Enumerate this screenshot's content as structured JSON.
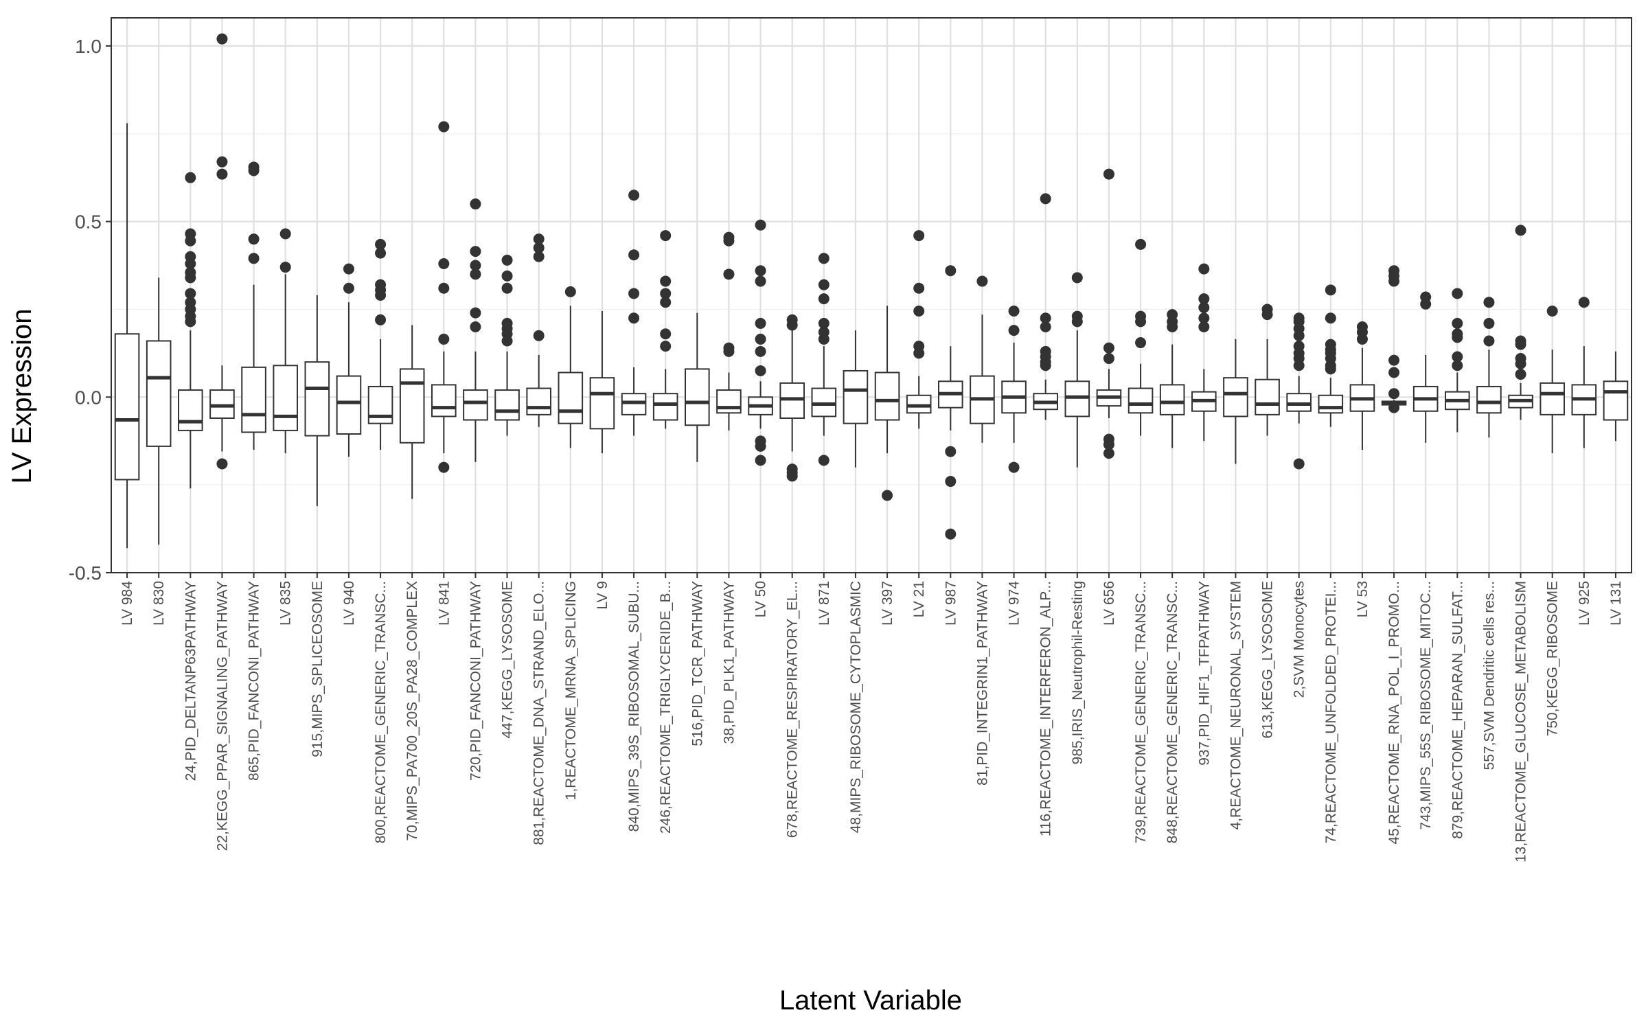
{
  "chart_data": {
    "type": "box",
    "xlabel": "Latent Variable",
    "ylabel": "LV Expression",
    "ylim": [
      -0.5,
      1.08
    ],
    "yticks": [
      -0.5,
      0.0,
      0.5,
      1.0
    ],
    "ytick_labels": [
      "-0.5",
      "0.0",
      "0.5",
      "1.0"
    ],
    "grid": true,
    "theme": "bw",
    "colors": {
      "box_fill": "#ffffff",
      "box_stroke": "#333333",
      "grid_major": "#e0e0e0",
      "grid_minor": "#f0f0f0",
      "panel_border": "#333333"
    },
    "categories": [
      "LV 984",
      "LV 830",
      "24,PID_DELTANP63PATHWAY",
      "22,KEGG_PPAR_SIGNALING_PATHWAY",
      "865,PID_FANCONI_PATHWAY",
      "LV 835",
      "915,MIPS_SPLICEOSOME",
      "LV 940",
      "800,REACTOME_GENERIC_TRANSC...",
      "70,MIPS_PA700_20S_PA28_COMPLEX",
      "LV 841",
      "720,PID_FANCONI_PATHWAY",
      "447,KEGG_LYSOSOME",
      "881,REACTOME_DNA_STRAND_ELO...",
      "1,REACTOME_MRNA_SPLICING",
      "LV 9",
      "840,MIPS_39S_RIBOSOMAL_SUBU...",
      "246,REACTOME_TRIGLYCERIDE_B...",
      "516,PID_TCR_PATHWAY",
      "38,PID_PLK1_PATHWAY",
      "LV 50",
      "678,REACTOME_RESPIRATORY_EL...",
      "LV 871",
      "48,MIPS_RIBOSOME_CYTOPLASMIC",
      "LV 397",
      "LV 21",
      "LV 987",
      "81,PID_INTEGRIN1_PATHWAY",
      "LV 974",
      "116,REACTOME_INTERFERON_ALP...",
      "985,IRIS_Neutrophil-Resting",
      "LV 656",
      "739,REACTOME_GENERIC_TRANSC...",
      "848,REACTOME_GENERIC_TRANSC...",
      "937,PID_HIF1_TFPATHWAY",
      "4,REACTOME_NEURONAL_SYSTEM",
      "613,KEGG_LYSOSOME",
      "2,SVM Monocytes",
      "74,REACTOME_UNFOLDED_PROTEI...",
      "LV 53",
      "45,REACTOME_RNA_POL_I_PROMO...",
      "743,MIPS_55S_RIBOSOME_MITOC...",
      "879,REACTOME_HEPARAN_SULFAT...",
      "557,SVM Dendritic cells res...",
      "13,REACTOME_GLUCOSE_METABOLISM",
      "750,KEGG_RIBOSOME",
      "LV 925",
      "LV 131"
    ],
    "boxes": [
      {
        "whisker_low": -0.43,
        "q1": -0.235,
        "median": -0.065,
        "q3": 0.18,
        "whisker_high": 0.78,
        "outliers": []
      },
      {
        "whisker_low": -0.42,
        "q1": -0.14,
        "median": 0.055,
        "q3": 0.16,
        "whisker_high": 0.34,
        "outliers": []
      },
      {
        "whisker_low": -0.26,
        "q1": -0.095,
        "median": -0.07,
        "q3": 0.02,
        "whisker_high": 0.19,
        "outliers": [
          0.625,
          0.465,
          0.445,
          0.4,
          0.38,
          0.355,
          0.34,
          0.295,
          0.27,
          0.25,
          0.23,
          0.215
        ]
      },
      {
        "whisker_low": -0.155,
        "q1": -0.06,
        "median": -0.025,
        "q3": 0.02,
        "whisker_high": 0.09,
        "outliers": [
          1.02,
          0.67,
          0.635,
          -0.19
        ]
      },
      {
        "whisker_low": -0.15,
        "q1": -0.1,
        "median": -0.05,
        "q3": 0.085,
        "whisker_high": 0.32,
        "outliers": [
          0.655,
          0.645,
          0.45,
          0.395
        ]
      },
      {
        "whisker_low": -0.16,
        "q1": -0.095,
        "median": -0.055,
        "q3": 0.09,
        "whisker_high": 0.35,
        "outliers": [
          0.465,
          0.37
        ]
      },
      {
        "whisker_low": -0.31,
        "q1": -0.11,
        "median": 0.025,
        "q3": 0.1,
        "whisker_high": 0.29,
        "outliers": []
      },
      {
        "whisker_low": -0.17,
        "q1": -0.105,
        "median": -0.015,
        "q3": 0.06,
        "whisker_high": 0.27,
        "outliers": [
          0.365,
          0.31
        ]
      },
      {
        "whisker_low": -0.15,
        "q1": -0.075,
        "median": -0.055,
        "q3": 0.03,
        "whisker_high": 0.165,
        "outliers": [
          0.435,
          0.41,
          0.32,
          0.305,
          0.29,
          0.22
        ]
      },
      {
        "whisker_low": -0.29,
        "q1": -0.13,
        "median": 0.04,
        "q3": 0.08,
        "whisker_high": 0.205,
        "outliers": []
      },
      {
        "whisker_low": -0.16,
        "q1": -0.055,
        "median": -0.03,
        "q3": 0.035,
        "whisker_high": 0.13,
        "outliers": [
          0.77,
          0.38,
          0.31,
          0.165,
          -0.2
        ]
      },
      {
        "whisker_low": -0.185,
        "q1": -0.065,
        "median": -0.015,
        "q3": 0.02,
        "whisker_high": 0.13,
        "outliers": [
          0.55,
          0.415,
          0.375,
          0.35,
          0.24,
          0.2
        ]
      },
      {
        "whisker_low": -0.11,
        "q1": -0.065,
        "median": -0.04,
        "q3": 0.02,
        "whisker_high": 0.13,
        "outliers": [
          0.39,
          0.345,
          0.31,
          0.21,
          0.195,
          0.18,
          0.16
        ]
      },
      {
        "whisker_low": -0.085,
        "q1": -0.05,
        "median": -0.03,
        "q3": 0.025,
        "whisker_high": 0.12,
        "outliers": [
          0.45,
          0.425,
          0.4,
          0.175
        ]
      },
      {
        "whisker_low": -0.145,
        "q1": -0.075,
        "median": -0.04,
        "q3": 0.07,
        "whisker_high": 0.26,
        "outliers": [
          0.3
        ]
      },
      {
        "whisker_low": -0.16,
        "q1": -0.09,
        "median": 0.01,
        "q3": 0.055,
        "whisker_high": 0.245,
        "outliers": []
      },
      {
        "whisker_low": -0.11,
        "q1": -0.05,
        "median": -0.015,
        "q3": 0.01,
        "whisker_high": 0.085,
        "outliers": [
          0.575,
          0.405,
          0.295,
          0.225
        ]
      },
      {
        "whisker_low": -0.09,
        "q1": -0.065,
        "median": -0.02,
        "q3": 0.01,
        "whisker_high": 0.08,
        "outliers": [
          0.46,
          0.33,
          0.295,
          0.27,
          0.18,
          0.145
        ]
      },
      {
        "whisker_low": -0.185,
        "q1": -0.08,
        "median": -0.015,
        "q3": 0.08,
        "whisker_high": 0.24,
        "outliers": []
      },
      {
        "whisker_low": -0.095,
        "q1": -0.045,
        "median": -0.03,
        "q3": 0.02,
        "whisker_high": 0.07,
        "outliers": [
          0.455,
          0.445,
          0.35,
          0.14,
          0.13
        ]
      },
      {
        "whisker_low": -0.09,
        "q1": -0.05,
        "median": -0.025,
        "q3": 0,
        "whisker_high": 0.045,
        "outliers": [
          0.49,
          0.36,
          0.33,
          0.21,
          0.165,
          0.13,
          0.075,
          -0.125,
          -0.14,
          -0.18
        ]
      },
      {
        "whisker_low": -0.155,
        "q1": -0.06,
        "median": -0.005,
        "q3": 0.04,
        "whisker_high": 0.195,
        "outliers": [
          0.22,
          0.205,
          -0.205,
          -0.215,
          -0.225
        ]
      },
      {
        "whisker_low": -0.11,
        "q1": -0.055,
        "median": -0.02,
        "q3": 0.025,
        "whisker_high": 0.145,
        "outliers": [
          0.395,
          0.32,
          0.28,
          0.21,
          0.185,
          0.165,
          -0.18
        ]
      },
      {
        "whisker_low": -0.2,
        "q1": -0.075,
        "median": 0.02,
        "q3": 0.075,
        "whisker_high": 0.19,
        "outliers": []
      },
      {
        "whisker_low": -0.16,
        "q1": -0.065,
        "median": -0.01,
        "q3": 0.07,
        "whisker_high": 0.26,
        "outliers": [
          -0.28
        ]
      },
      {
        "whisker_low": -0.09,
        "q1": -0.045,
        "median": -0.025,
        "q3": 0.005,
        "whisker_high": 0.06,
        "outliers": [
          0.46,
          0.31,
          0.245,
          0.145,
          0.125
        ]
      },
      {
        "whisker_low": -0.095,
        "q1": -0.03,
        "median": 0.01,
        "q3": 0.045,
        "whisker_high": 0.145,
        "outliers": [
          0.36,
          -0.155,
          -0.24,
          -0.39
        ]
      },
      {
        "whisker_low": -0.13,
        "q1": -0.075,
        "median": -0.005,
        "q3": 0.06,
        "whisker_high": 0.235,
        "outliers": [
          0.33
        ]
      },
      {
        "whisker_low": -0.13,
        "q1": -0.045,
        "median": 0,
        "q3": 0.045,
        "whisker_high": 0.155,
        "outliers": [
          0.245,
          0.19,
          -0.2
        ]
      },
      {
        "whisker_low": -0.065,
        "q1": -0.035,
        "median": -0.015,
        "q3": 0.01,
        "whisker_high": 0.05,
        "outliers": [
          0.565,
          0.225,
          0.2,
          0.13,
          0.115,
          0.1,
          0.09
        ]
      },
      {
        "whisker_low": -0.2,
        "q1": -0.055,
        "median": 0,
        "q3": 0.045,
        "whisker_high": 0.19,
        "outliers": [
          0.34,
          0.23,
          0.215
        ]
      },
      {
        "whisker_low": -0.06,
        "q1": -0.025,
        "median": 0,
        "q3": 0.02,
        "whisker_high": 0.08,
        "outliers": [
          0.635,
          0.14,
          0.11,
          -0.12,
          -0.135,
          -0.16
        ]
      },
      {
        "whisker_low": -0.11,
        "q1": -0.045,
        "median": -0.02,
        "q3": 0.025,
        "whisker_high": 0.095,
        "outliers": [
          0.435,
          0.23,
          0.215,
          0.155
        ]
      },
      {
        "whisker_low": -0.145,
        "q1": -0.05,
        "median": -0.015,
        "q3": 0.035,
        "whisker_high": 0.15,
        "outliers": [
          0.235,
          0.215,
          0.2
        ]
      },
      {
        "whisker_low": -0.125,
        "q1": -0.04,
        "median": -0.01,
        "q3": 0.015,
        "whisker_high": 0.08,
        "outliers": [
          0.365,
          0.28,
          0.255,
          0.225,
          0.2
        ]
      },
      {
        "whisker_low": -0.19,
        "q1": -0.055,
        "median": 0.01,
        "q3": 0.055,
        "whisker_high": 0.165,
        "outliers": []
      },
      {
        "whisker_low": -0.11,
        "q1": -0.05,
        "median": -0.02,
        "q3": 0.05,
        "whisker_high": 0.165,
        "outliers": [
          0.25,
          0.235
        ]
      },
      {
        "whisker_low": -0.075,
        "q1": -0.04,
        "median": -0.02,
        "q3": 0.01,
        "whisker_high": 0.06,
        "outliers": [
          0.225,
          0.215,
          0.195,
          0.175,
          0.145,
          0.125,
          0.11,
          0.09,
          -0.19
        ]
      },
      {
        "whisker_low": -0.085,
        "q1": -0.045,
        "median": -0.03,
        "q3": 0.005,
        "whisker_high": 0.055,
        "outliers": [
          0.305,
          0.225,
          0.15,
          0.135,
          0.125,
          0.11,
          0.09,
          0.08
        ]
      },
      {
        "whisker_low": -0.15,
        "q1": -0.04,
        "median": -0.005,
        "q3": 0.035,
        "whisker_high": 0.14,
        "outliers": [
          0.2,
          0.185,
          0.165
        ]
      },
      {
        "whisker_low": -0.025,
        "q1": -0.022,
        "median": -0.018,
        "q3": -0.012,
        "whisker_high": -0.008,
        "outliers": [
          0.36,
          0.345,
          0.33,
          0.105,
          0.07,
          0.01,
          -0.03
        ]
      },
      {
        "whisker_low": -0.13,
        "q1": -0.04,
        "median": -0.005,
        "q3": 0.03,
        "whisker_high": 0.12,
        "outliers": [
          0.285,
          0.265
        ]
      },
      {
        "whisker_low": -0.1,
        "q1": -0.035,
        "median": -0.01,
        "q3": 0.015,
        "whisker_high": 0.07,
        "outliers": [
          0.295,
          0.21,
          0.18,
          0.17,
          0.115,
          0.09
        ]
      },
      {
        "whisker_low": -0.115,
        "q1": -0.045,
        "median": -0.015,
        "q3": 0.03,
        "whisker_high": 0.135,
        "outliers": [
          0.27,
          0.21,
          0.16
        ]
      },
      {
        "whisker_low": -0.065,
        "q1": -0.03,
        "median": -0.01,
        "q3": 0.005,
        "whisker_high": 0.04,
        "outliers": [
          0.475,
          0.16,
          0.15,
          0.11,
          0.095,
          0.065
        ]
      },
      {
        "whisker_low": -0.16,
        "q1": -0.05,
        "median": 0.01,
        "q3": 0.04,
        "whisker_high": 0.135,
        "outliers": [
          0.245
        ]
      },
      {
        "whisker_low": -0.145,
        "q1": -0.05,
        "median": -0.005,
        "q3": 0.035,
        "whisker_high": 0.145,
        "outliers": [
          0.27
        ]
      },
      {
        "whisker_low": -0.125,
        "q1": -0.065,
        "median": 0.015,
        "q3": 0.045,
        "whisker_high": 0.13,
        "outliers": []
      }
    ]
  }
}
